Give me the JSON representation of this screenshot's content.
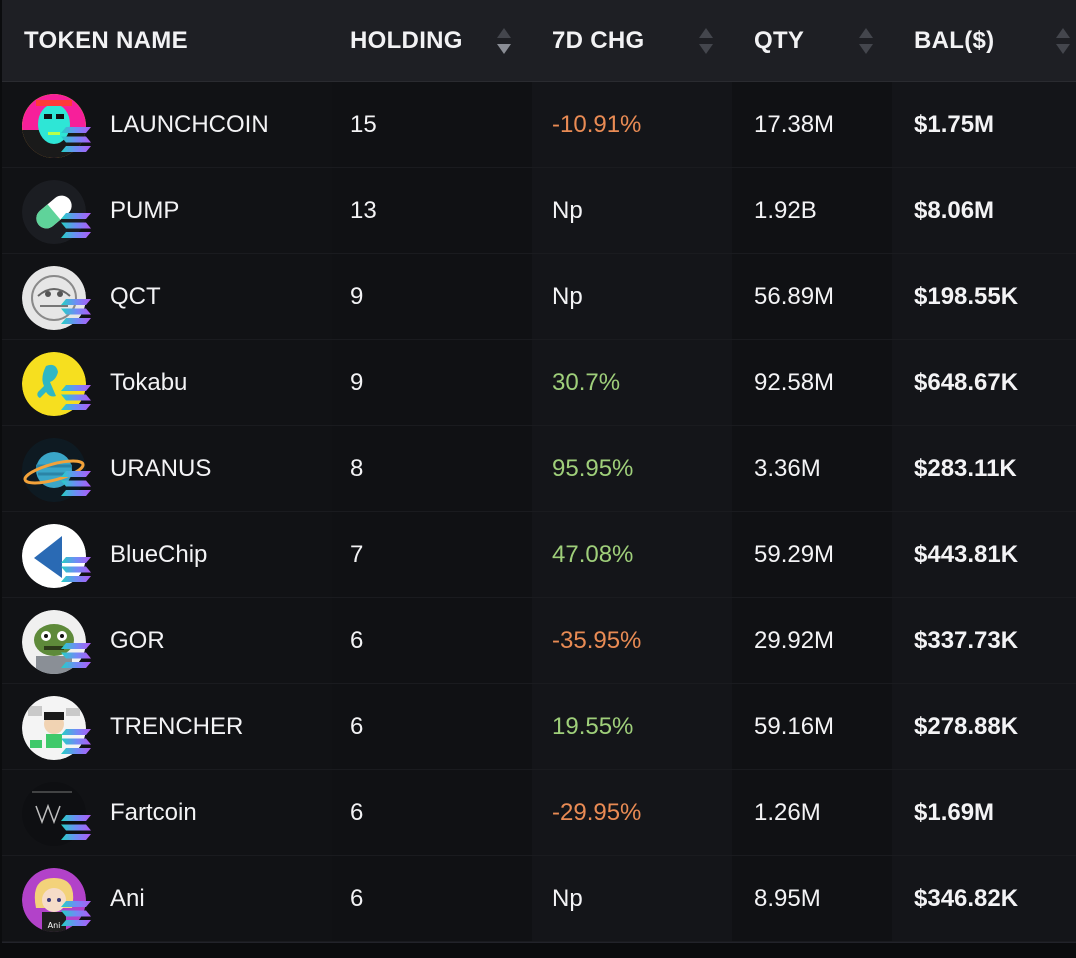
{
  "table": {
    "columns": [
      {
        "key": "name",
        "label": "TOKEN NAME",
        "sortable": false
      },
      {
        "key": "holding",
        "label": "HOLDING",
        "sortable": true,
        "sort": "desc"
      },
      {
        "key": "chg",
        "label": "7D CHG",
        "sortable": true,
        "sort": "none"
      },
      {
        "key": "qty",
        "label": "QTY",
        "sortable": true,
        "sort": "none"
      },
      {
        "key": "bal",
        "label": "BAL($)",
        "sortable": true,
        "sort": "none"
      }
    ],
    "rows": [
      {
        "name": "LAUNCHCOIN",
        "holding": "15",
        "chg": "-10.91%",
        "trend": "neg",
        "qty": "17.38M",
        "bal": "$1.75M",
        "icon": "launchcoin-face-icon"
      },
      {
        "name": "PUMP",
        "holding": "13",
        "chg": "Np",
        "trend": "flat",
        "qty": "1.92B",
        "bal": "$8.06M",
        "icon": "pill-capsule-icon"
      },
      {
        "name": "QCT",
        "holding": "9",
        "chg": "Np",
        "trend": "flat",
        "qty": "56.89M",
        "bal": "$198.55K",
        "icon": "qct-sketch-icon"
      },
      {
        "name": "Tokabu",
        "holding": "9",
        "chg": "30.7%",
        "trend": "pos",
        "qty": "92.58M",
        "bal": "$648.67K",
        "icon": "tokabu-lizard-icon"
      },
      {
        "name": "URANUS",
        "holding": "8",
        "chg": "95.95%",
        "trend": "pos",
        "qty": "3.36M",
        "bal": "$283.11K",
        "icon": "planet-ring-icon"
      },
      {
        "name": "BlueChip",
        "holding": "7",
        "chg": "47.08%",
        "trend": "pos",
        "qty": "59.29M",
        "bal": "$443.81K",
        "icon": "blue-triangle-icon"
      },
      {
        "name": "GOR",
        "holding": "6",
        "chg": "-35.95%",
        "trend": "neg",
        "qty": "29.92M",
        "bal": "$337.73K",
        "icon": "green-grouch-icon"
      },
      {
        "name": "TRENCHER",
        "holding": "6",
        "chg": "19.55%",
        "trend": "pos",
        "qty": "59.16M",
        "bal": "$278.88K",
        "icon": "trencher-comic-icon"
      },
      {
        "name": "Fartcoin",
        "holding": "6",
        "chg": "-29.95%",
        "trend": "neg",
        "qty": "1.26M",
        "bal": "$1.69M",
        "icon": "fartcoin-dark-icon"
      },
      {
        "name": "Ani",
        "holding": "6",
        "chg": "Np",
        "trend": "flat",
        "qty": "8.95M",
        "bal": "$346.82K",
        "icon": "ani-anime-girl-icon",
        "avatar_text": "Ani"
      }
    ],
    "chain_badge_icon": "solana-chain-icon",
    "colors": {
      "positive": "#9fcf7a",
      "negative": "#e98b54",
      "header_bg": "#1e1f24",
      "body_bg": "#111215"
    }
  }
}
